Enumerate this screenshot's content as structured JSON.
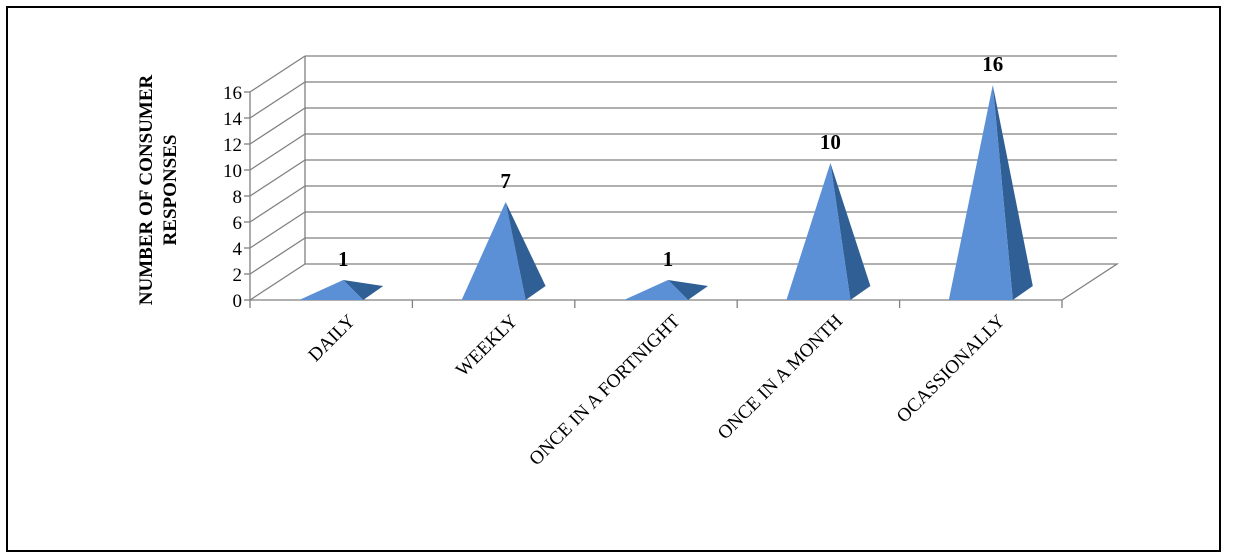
{
  "chart_data": {
    "type": "bar",
    "bar_shape": "3d-pyramid",
    "categories": [
      "DAILY",
      "WEEKLY",
      "ONCE IN A FORTNIGHT",
      "ONCE IN A MONTH",
      "OCASSIONALLY"
    ],
    "values": [
      1,
      7,
      1,
      10,
      16
    ],
    "data_labels": [
      "1",
      "7",
      "1",
      "10",
      "16"
    ],
    "ylabel_lines": [
      "NUMBER OF CONSUMER",
      "RESPONSES"
    ],
    "xlabel": "",
    "yticks": [
      "0",
      "2",
      "4",
      "6",
      "8",
      "10",
      "12",
      "14",
      "16"
    ],
    "ylim": [
      0,
      16
    ],
    "grid": true,
    "legend": "none",
    "colors": {
      "front": "#5b8fd6",
      "side": "#2f5f95",
      "grid": "#808080"
    }
  }
}
